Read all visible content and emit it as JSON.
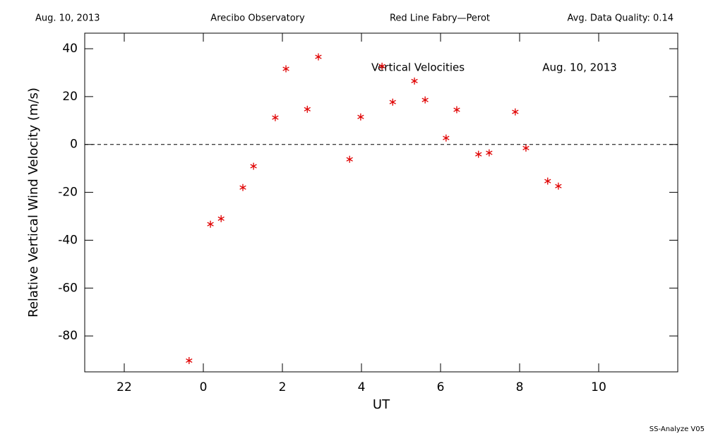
{
  "chart_data": {
    "type": "scatter",
    "header": [
      "Aug. 10, 2013",
      "Arecibo Observatory",
      "Red Line Fabry—Perot",
      "Avg. Data Quality: 0.14"
    ],
    "annotations": [
      "Vertical Velocities",
      "Aug. 10, 2013"
    ],
    "footer": "SS-Analyze V05",
    "xlabel": "UT",
    "ylabel": "Relative Vertical Wind Velocity (m/s)",
    "xlim": [
      -3,
      12
    ],
    "ylim": [
      -95,
      46.5
    ],
    "xticks": [
      {
        "value": -2,
        "label": "22"
      },
      0,
      2,
      4,
      6,
      8,
      10
    ],
    "yticks": [
      40,
      20,
      0,
      -20,
      -40,
      -60,
      -80
    ],
    "reference_line": 0,
    "color": "#e00000",
    "x": [
      -0.36,
      0.18,
      0.45,
      1.0,
      1.27,
      1.82,
      2.09,
      2.63,
      2.91,
      3.7,
      3.98,
      4.52,
      4.79,
      5.34,
      5.61,
      6.14,
      6.41,
      6.96,
      7.23,
      7.89,
      8.16,
      8.71,
      8.98
    ],
    "values": [
      -90.3,
      -33.3,
      -31.0,
      -18.0,
      -9.1,
      11.2,
      31.6,
      14.7,
      36.6,
      -6.2,
      11.5,
      32.7,
      17.7,
      26.5,
      18.6,
      2.7,
      14.5,
      -4.1,
      -3.5,
      13.6,
      -1.5,
      -15.3,
      -17.4
    ]
  }
}
